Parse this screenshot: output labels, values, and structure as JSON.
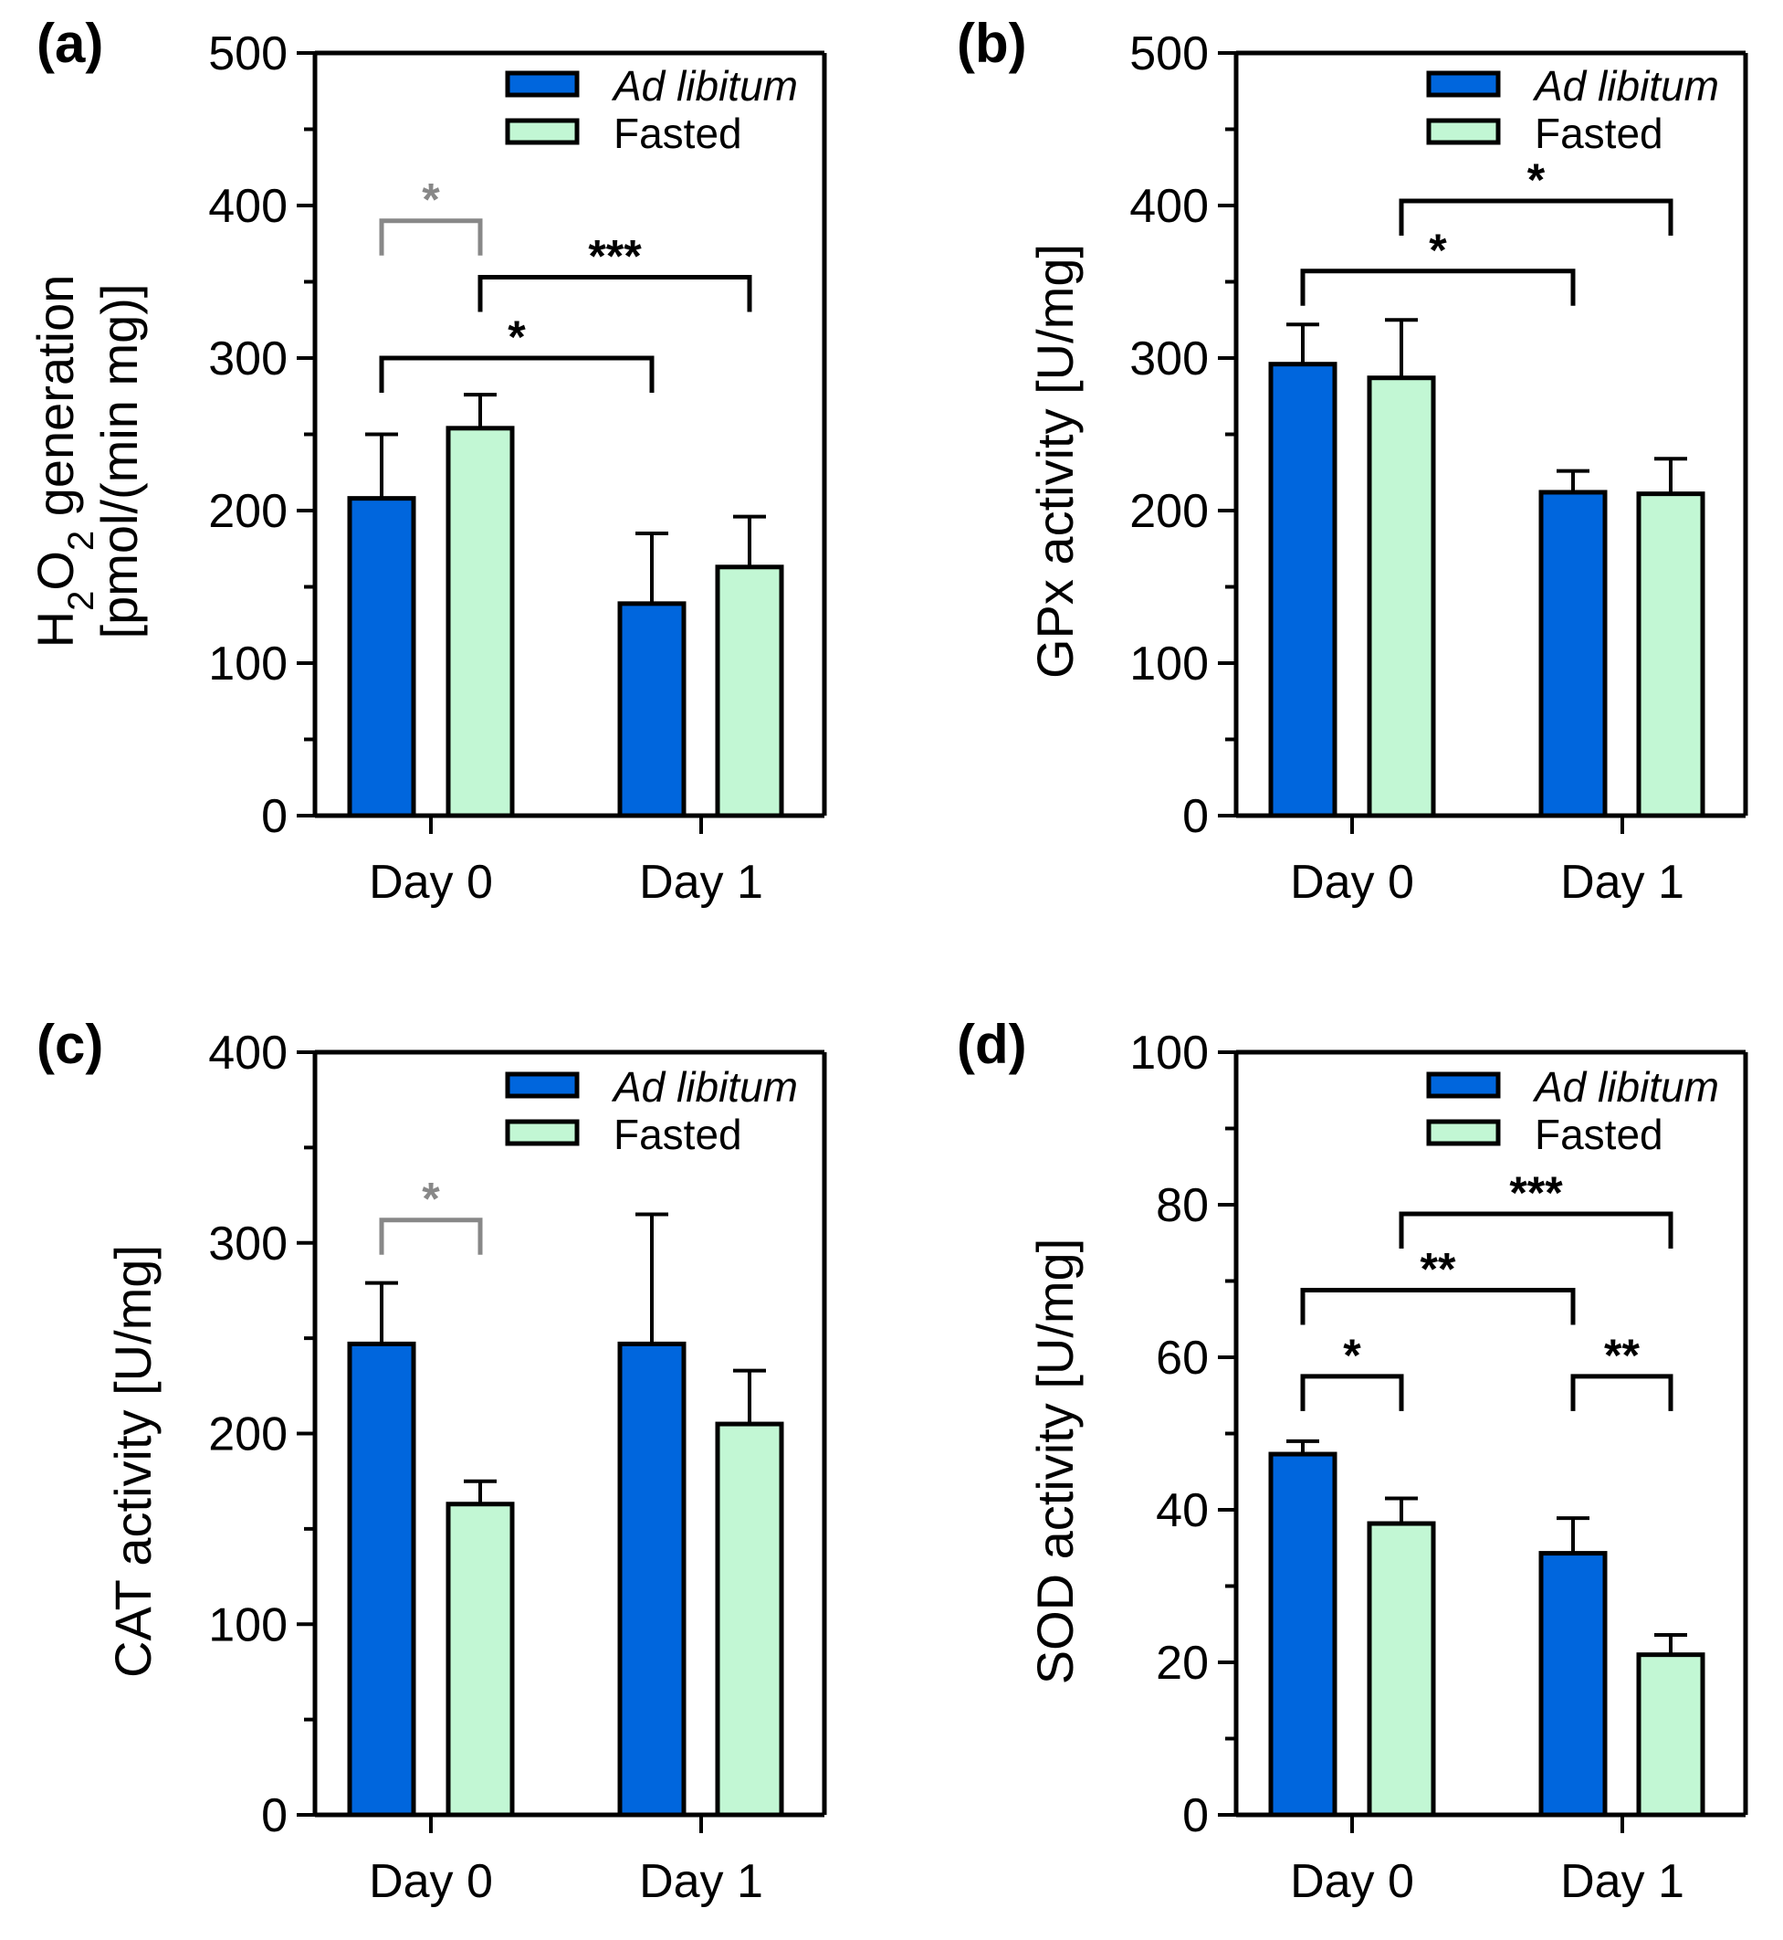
{
  "chart_data": [
    {
      "type": "bar",
      "panel": "(a)",
      "categories": [
        "Day 0",
        "Day 1"
      ],
      "series": [
        {
          "name": "Ad libitum",
          "color": "#0066dd",
          "values": [
            208,
            139
          ],
          "errors": [
            42,
            46
          ]
        },
        {
          "name": "Fasted",
          "color": "#c2f7d4",
          "values": [
            254,
            163
          ],
          "errors": [
            22,
            33
          ]
        }
      ],
      "ylabel_line1_main": "H",
      "ylabel_line1_sub1": "2",
      "ylabel_line1_mid": "O",
      "ylabel_line1_sub2": "2",
      "ylabel_line1_rest": " generation",
      "ylabel_line2": "[pmol/(min mg)]",
      "ylim": [
        0,
        500
      ],
      "yticks": [
        0,
        100,
        200,
        300,
        400,
        500
      ],
      "minor_step": 50,
      "legend": {
        "position": "top-right",
        "entries": [
          "Ad libitum",
          "Fasted"
        ]
      },
      "significance": [
        {
          "label": "*",
          "from": [
            0,
            0
          ],
          "to": [
            0,
            1
          ],
          "y": 390,
          "color": "#888888"
        },
        {
          "label": "***",
          "from": [
            0,
            1
          ],
          "to": [
            1,
            1
          ],
          "y": 353,
          "color": "#000000"
        },
        {
          "label": "*",
          "from": [
            0,
            0
          ],
          "to": [
            1,
            0
          ],
          "y": 300,
          "color": "#000000"
        }
      ]
    },
    {
      "type": "bar",
      "panel": "(b)",
      "categories": [
        "Day 0",
        "Day 1"
      ],
      "series": [
        {
          "name": "Ad libitum",
          "color": "#0066dd",
          "values": [
            296,
            212
          ],
          "errors": [
            26,
            14
          ]
        },
        {
          "name": "Fasted",
          "color": "#c2f7d4",
          "values": [
            287,
            211
          ],
          "errors": [
            38,
            23
          ]
        }
      ],
      "ylabel": "GPx activity [U/mg]",
      "ylim": [
        0,
        500
      ],
      "yticks": [
        0,
        100,
        200,
        300,
        400,
        500
      ],
      "minor_step": 50,
      "legend": {
        "position": "top-right",
        "entries": [
          "Ad libitum",
          "Fasted"
        ]
      },
      "significance": [
        {
          "label": "*",
          "from": [
            0,
            1
          ],
          "to": [
            1,
            1
          ],
          "y": 403,
          "color": "#000000"
        },
        {
          "label": "*",
          "from": [
            0,
            0
          ],
          "to": [
            1,
            0
          ],
          "y": 357,
          "color": "#000000"
        }
      ]
    },
    {
      "type": "bar",
      "panel": "(c)",
      "categories": [
        "Day 0",
        "Day 1"
      ],
      "series": [
        {
          "name": "Ad libitum",
          "color": "#0066dd",
          "values": [
            247,
            247
          ],
          "errors": [
            32,
            68
          ]
        },
        {
          "name": "Fasted",
          "color": "#c2f7d4",
          "values": [
            163,
            205
          ],
          "errors": [
            12,
            28
          ]
        }
      ],
      "ylabel": "CAT activity [U/mg]",
      "ylim": [
        0,
        400
      ],
      "yticks": [
        0,
        100,
        200,
        300,
        400
      ],
      "minor_step": 50,
      "legend": {
        "position": "top-right",
        "entries": [
          "Ad libitum",
          "Fasted"
        ]
      },
      "significance": [
        {
          "label": "*",
          "from": [
            0,
            0
          ],
          "to": [
            0,
            1
          ],
          "y": 312,
          "color": "#888888"
        }
      ]
    },
    {
      "type": "bar",
      "panel": "(d)",
      "categories": [
        "Day 0",
        "Day 1"
      ],
      "series": [
        {
          "name": "Ad libitum",
          "color": "#0066dd",
          "values": [
            47.3,
            34.3
          ],
          "errors": [
            1.7,
            4.6
          ]
        },
        {
          "name": "Fasted",
          "color": "#c2f7d4",
          "values": [
            38.2,
            21.0
          ],
          "errors": [
            3.3,
            2.6
          ]
        }
      ],
      "ylabel": "SOD activity [U/mg]",
      "ylim": [
        0,
        100
      ],
      "yticks": [
        0,
        20,
        40,
        60,
        80,
        100
      ],
      "minor_step": 10,
      "legend": {
        "position": "top-right",
        "entries": [
          "Ad libitum",
          "Fasted"
        ]
      },
      "significance": [
        {
          "label": "***",
          "from": [
            0,
            1
          ],
          "to": [
            1,
            1
          ],
          "y": 78.8,
          "color": "#000000"
        },
        {
          "label": "**",
          "from": [
            0,
            0
          ],
          "to": [
            1,
            0
          ],
          "y": 68.8,
          "color": "#000000"
        },
        {
          "label": "*",
          "from": [
            0,
            0
          ],
          "to": [
            0,
            1
          ],
          "y": 57.5,
          "color": "#000000"
        },
        {
          "label": "**",
          "from": [
            1,
            0
          ],
          "to": [
            1,
            1
          ],
          "y": 57.5,
          "color": "#000000"
        }
      ]
    }
  ]
}
